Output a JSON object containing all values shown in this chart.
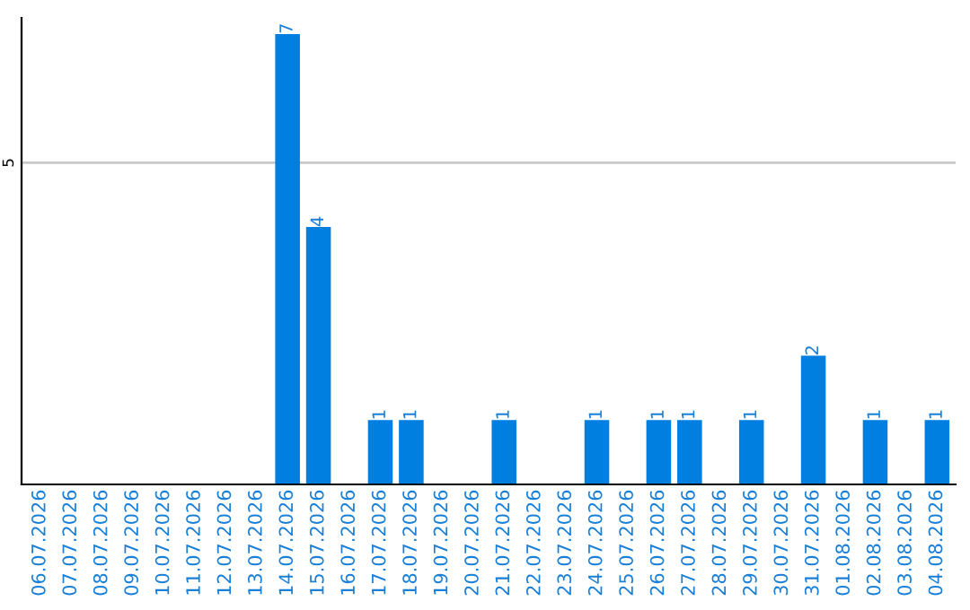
{
  "chart_data": {
    "type": "bar",
    "categories": [
      "06.07.2026",
      "07.07.2026",
      "08.07.2026",
      "09.07.2026",
      "10.07.2026",
      "11.07.2026",
      "12.07.2026",
      "13.07.2026",
      "14.07.2026",
      "15.07.2026",
      "16.07.2026",
      "17.07.2026",
      "18.07.2026",
      "19.07.2026",
      "20.07.2026",
      "21.07.2026",
      "22.07.2026",
      "23.07.2026",
      "24.07.2026",
      "25.07.2026",
      "26.07.2026",
      "27.07.2026",
      "28.07.2026",
      "29.07.2026",
      "30.07.2026",
      "31.07.2026",
      "01.08.2026",
      "02.08.2026",
      "03.08.2026",
      "04.08.2026"
    ],
    "values": [
      0,
      0,
      0,
      0,
      0,
      0,
      0,
      0,
      7,
      4,
      0,
      1,
      1,
      0,
      0,
      1,
      0,
      0,
      1,
      0,
      1,
      1,
      0,
      1,
      0,
      2,
      0,
      1,
      0,
      1
    ],
    "value_labels": [
      null,
      null,
      null,
      null,
      null,
      null,
      null,
      null,
      "7",
      "4",
      null,
      "1",
      "1",
      null,
      null,
      "1",
      null,
      null,
      "1",
      null,
      "1",
      "1",
      null,
      "1",
      null,
      "2",
      null,
      "1",
      null,
      "1"
    ],
    "color": "#007fe0",
    "ylim": [
      0,
      7.25
    ],
    "yticks": [
      5
    ],
    "grid": "y"
  }
}
